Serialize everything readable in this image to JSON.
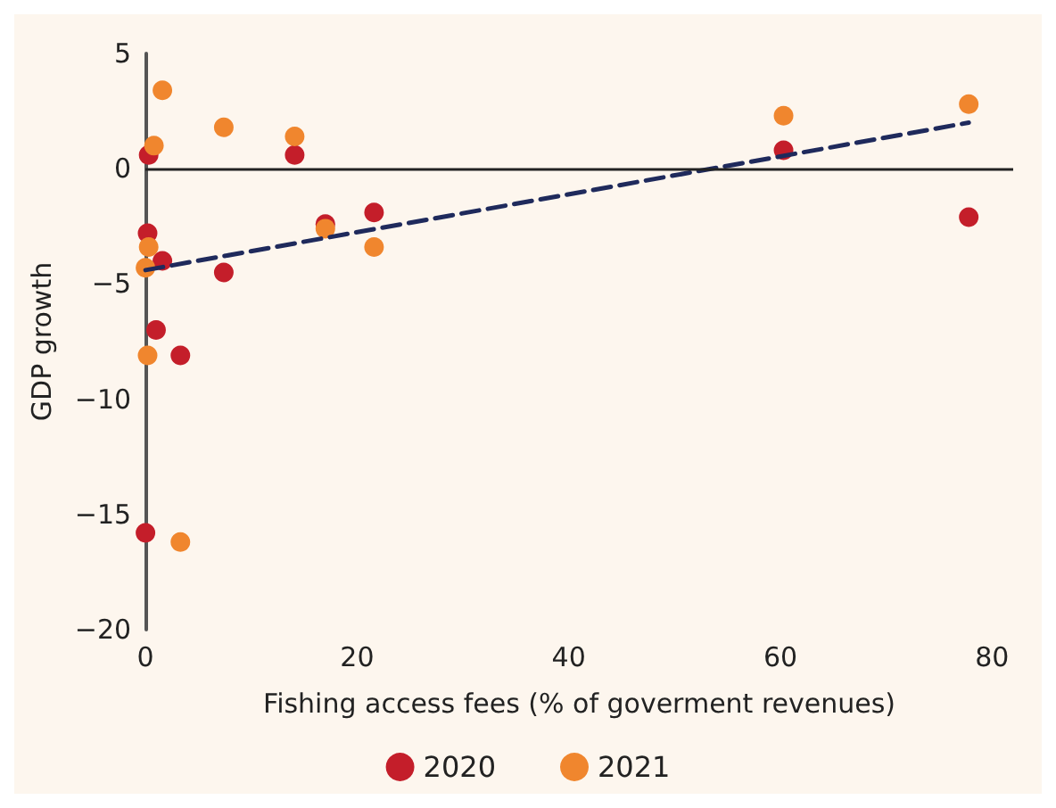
{
  "chart_data": {
    "type": "scatter",
    "xlabel": "Fishing access fees (% of goverment revenues)",
    "ylabel": "GDP growth",
    "xlim": [
      0,
      82
    ],
    "xticks": [
      0,
      20,
      40,
      60,
      80
    ],
    "ylim": [
      -20,
      5
    ],
    "yticks": [
      -20,
      -15,
      -10,
      -5,
      0,
      5
    ],
    "grid": false,
    "ref_lines": [
      {
        "axis": "y",
        "value": 0,
        "color": "#222222"
      }
    ],
    "legend": "bottom",
    "marker": "circle",
    "series": [
      {
        "name": "2020",
        "color": "#c41e2a",
        "x": [
          0.3,
          0.2,
          1.6,
          1,
          3.3,
          0,
          7.4,
          14.1,
          17,
          21.6,
          60.3,
          77.8
        ],
        "values": [
          0.6,
          -2.8,
          -4,
          -7,
          -8.1,
          -15.8,
          -4.5,
          0.6,
          -2.4,
          -1.9,
          0.8,
          -2.1
        ]
      },
      {
        "name": "2021",
        "color": "#f0862e",
        "x": [
          1.6,
          0.8,
          7.4,
          14.1,
          0.3,
          0,
          0.2,
          3.3,
          17,
          21.6,
          60.3,
          77.8
        ],
        "values": [
          3.4,
          1,
          1.8,
          1.4,
          -3.4,
          -4.3,
          -8.1,
          -16.2,
          -2.6,
          -3.4,
          2.3,
          2.8
        ]
      },
      {
        "type": "line",
        "color": "#1f2a5c",
        "line_style": "dashed",
        "marker": "none",
        "x": [
          0,
          77.8
        ],
        "values": [
          -4.4,
          2
        ]
      }
    ]
  }
}
